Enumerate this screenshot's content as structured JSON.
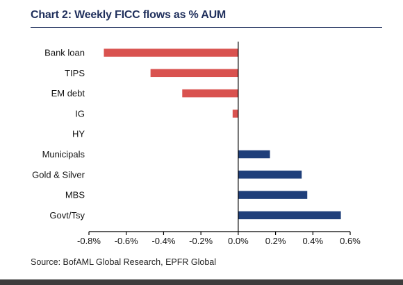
{
  "chart_data": {
    "type": "bar",
    "orientation": "horizontal",
    "title": "Chart 2: Weekly FICC flows as % AUM",
    "categories": [
      "Bank loan",
      "TIPS",
      "EM debt",
      "IG",
      "HY",
      "Municipals",
      "Gold & Silver",
      "MBS",
      "Govt/Tsy"
    ],
    "values": [
      -0.72,
      -0.47,
      -0.3,
      -0.03,
      0.0,
      0.17,
      0.34,
      0.37,
      0.55
    ],
    "xlim": [
      -0.8,
      0.6
    ],
    "xticks": [
      -0.8,
      -0.6,
      -0.4,
      -0.2,
      0.0,
      0.2,
      0.4,
      0.6
    ],
    "xtick_labels": [
      "-0.8%",
      "-0.6%",
      "-0.4%",
      "-0.2%",
      "0.0%",
      "0.2%",
      "0.4%",
      "0.6%"
    ],
    "xlabel": "",
    "ylabel": "",
    "grid": false,
    "colors": {
      "negative": "#d9524f",
      "positive": "#1f3f7a"
    }
  },
  "source": "Source: BofAML Global Research, EPFR Global"
}
